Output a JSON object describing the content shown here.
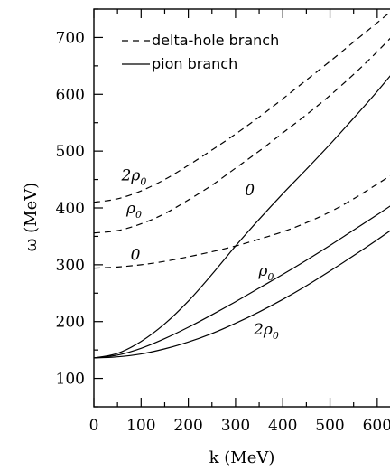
{
  "chart_data": {
    "type": "line",
    "title": "",
    "xlabel": "k (MeV)",
    "ylabel": "ω (MeV)",
    "xlim": [
      0,
      650
    ],
    "ylim": [
      50,
      750
    ],
    "xticks": [
      0,
      100,
      200,
      300,
      400,
      500,
      600
    ],
    "xtick_labels": [
      "0",
      "100",
      "200",
      "300",
      "400",
      "500",
      "600"
    ],
    "yticks": [
      100,
      200,
      300,
      400,
      500,
      600,
      700
    ],
    "ytick_labels": [
      "100",
      "200",
      "300",
      "400",
      "500",
      "600",
      "700"
    ],
    "grid": false,
    "legend": {
      "placement": "top-left",
      "entries": [
        {
          "label": "delta-hole branch",
          "style": "dashed"
        },
        {
          "label": "pion branch",
          "style": "solid"
        }
      ]
    },
    "series": [
      {
        "style": "solid",
        "annotation": "0",
        "x": [
          0,
          50,
          100,
          150,
          200,
          250,
          300,
          350,
          400,
          450,
          500,
          550,
          600,
          650
        ],
        "y": [
          136,
          144,
          165,
          196,
          236,
          283,
          333,
          380,
          425,
          468,
          512,
          558,
          605,
          655
        ]
      },
      {
        "style": "solid",
        "annotation": "ρ0",
        "x": [
          0,
          50,
          100,
          150,
          200,
          250,
          300,
          350,
          400,
          450,
          500,
          550,
          600,
          650
        ],
        "y": [
          136,
          141,
          153,
          170,
          190,
          212,
          235,
          259,
          283,
          308,
          334,
          361,
          388,
          416
        ]
      },
      {
        "style": "solid",
        "annotation": "2ρ0",
        "x": [
          0,
          50,
          100,
          150,
          200,
          250,
          300,
          350,
          400,
          450,
          500,
          550,
          600,
          650
        ],
        "y": [
          136,
          138,
          143,
          152,
          164,
          179,
          197,
          217,
          239,
          263,
          289,
          316,
          344,
          373
        ]
      },
      {
        "style": "dashed",
        "annotation": "0",
        "x": [
          0,
          50,
          100,
          150,
          200,
          250,
          300,
          350,
          400,
          450,
          500,
          550,
          600,
          650
        ],
        "y": [
          294,
          296,
          300,
          306,
          314,
          323,
          333,
          345,
          358,
          374,
          393,
          416,
          442,
          468
        ]
      },
      {
        "style": "dashed",
        "annotation": "ρ0",
        "x": [
          0,
          50,
          100,
          150,
          200,
          250,
          300,
          350,
          400,
          450,
          500,
          550,
          600,
          650
        ],
        "y": [
          356,
          360,
          372,
          390,
          414,
          440,
          470,
          500,
          532,
          564,
          598,
          635,
          675,
          718
        ]
      },
      {
        "style": "dashed",
        "annotation": "2ρ0",
        "x": [
          0,
          50,
          100,
          150,
          200,
          250,
          300,
          350,
          400,
          450,
          500,
          550,
          600,
          650
        ],
        "y": [
          410,
          416,
          430,
          450,
          475,
          502,
          530,
          560,
          592,
          625,
          658,
          692,
          726,
          760
        ]
      }
    ],
    "annotations": [
      {
        "text": "2ρ0",
        "x": 85,
        "y": 458
      },
      {
        "text": "ρ0",
        "x": 85,
        "y": 400
      },
      {
        "text": "0",
        "x": 88,
        "y": 318
      },
      {
        "text": "0",
        "x": 330,
        "y": 432
      },
      {
        "text": "ρ0",
        "x": 365,
        "y": 290
      },
      {
        "text": "2ρ0",
        "x": 365,
        "y": 187
      }
    ]
  }
}
